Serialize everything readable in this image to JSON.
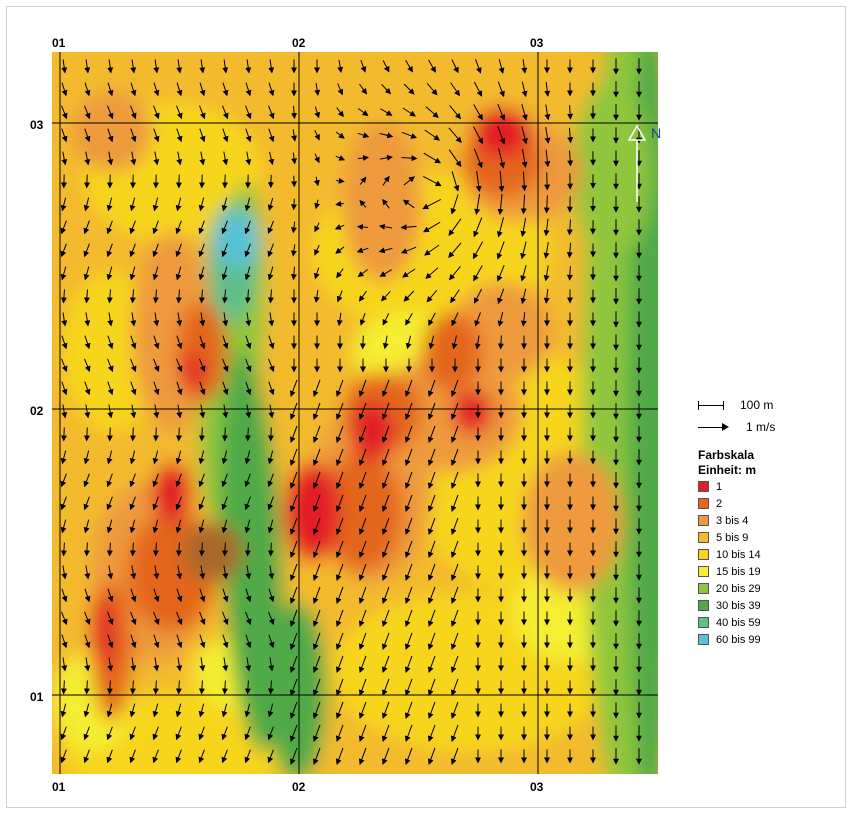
{
  "grid_labels": {
    "top": [
      "01",
      "02",
      "03"
    ],
    "bottom": [
      "01",
      "02",
      "03"
    ],
    "left_top": "03",
    "left_middle": "02",
    "left_bottom": "01"
  },
  "north_label": "N",
  "scale": {
    "distance": "100 m",
    "wind": "1 m/s"
  },
  "legend": {
    "title": "Farbskala",
    "unit": "Einheit: m",
    "items": [
      {
        "label": "1",
        "color": "#e31f26"
      },
      {
        "label": "2",
        "color": "#e4661f"
      },
      {
        "label": "3 bis 4",
        "color": "#ee9a3c"
      },
      {
        "label": "5 bis 9",
        "color": "#f3ba2e"
      },
      {
        "label": "10 bis 14",
        "color": "#f7d51c"
      },
      {
        "label": "15 bis 19",
        "color": "#f5ee32"
      },
      {
        "label": "20 bis 29",
        "color": "#8fc63e"
      },
      {
        "label": "30 bis 39",
        "color": "#4faa46"
      },
      {
        "label": "40 bis 59",
        "color": "#5dbf8b"
      },
      {
        "label": "60 bis 99",
        "color": "#57c2d8"
      }
    ]
  }
}
